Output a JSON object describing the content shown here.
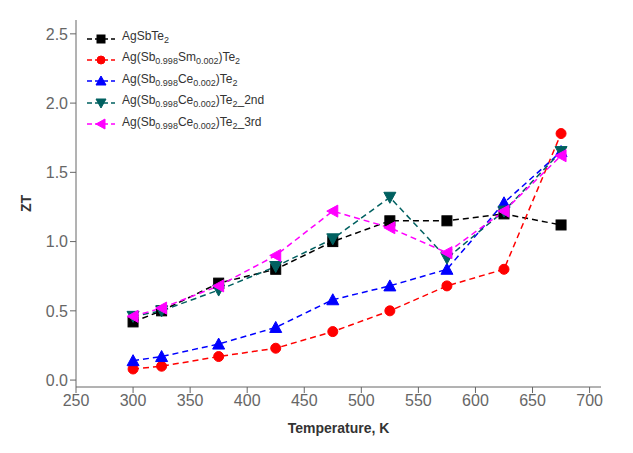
{
  "chart_data": {
    "type": "line",
    "title": "",
    "xlabel": "Temperature, K",
    "ylabel": "ZT",
    "xlim": [
      250,
      710
    ],
    "ylim": [
      -0.05,
      2.6
    ],
    "xticks": [
      250,
      300,
      350,
      400,
      450,
      500,
      550,
      600,
      650,
      700
    ],
    "yticks": [
      {
        "value": 0.0,
        "label": "0.0"
      },
      0.5,
      {
        "value": 1.0,
        "label": "1.0"
      },
      1.5,
      {
        "value": 2.0,
        "label": "2.0"
      },
      2.5
    ],
    "legend": "upper left",
    "x": [
      300,
      325,
      375,
      425,
      475,
      525,
      575,
      625,
      675
    ],
    "series": [
      {
        "name": "AgSbTe2",
        "color": "black",
        "marker": "square",
        "line_style": "dashed",
        "values": [
          0.42,
          0.5,
          0.7,
          0.8,
          1.0,
          1.15,
          1.15,
          1.2,
          1.12
        ]
      },
      {
        "name": "Ag(Sb0.998Sm0.002)Te2",
        "color": "red",
        "marker": "circle",
        "line_style": "dashed",
        "values": [
          0.08,
          0.1,
          0.17,
          0.23,
          0.35,
          0.5,
          0.68,
          0.8,
          1.78
        ]
      },
      {
        "name": "Ag(Sb0.998Ce0.002)Te2",
        "color": "blue",
        "marker": "triangle-up",
        "line_style": "dashed",
        "values": [
          0.14,
          0.17,
          0.26,
          0.38,
          0.58,
          0.68,
          0.8,
          1.28,
          1.65
        ]
      },
      {
        "name": "Ag(Sb0.998Ce0.002)Te2_2nd",
        "color": "#006060",
        "marker": "triangle-down",
        "line_style": "dashed",
        "values": [
          0.46,
          0.5,
          0.65,
          0.82,
          1.02,
          1.32,
          0.88,
          1.22,
          1.65
        ]
      },
      {
        "name": "Ag(Sb0.998Ce0.002)Te2_3rd",
        "color": "magenta",
        "marker": "triangle-left",
        "line_style": "dashed",
        "values": [
          0.46,
          0.52,
          0.68,
          0.9,
          1.22,
          1.1,
          0.92,
          1.22,
          1.62
        ]
      }
    ]
  }
}
